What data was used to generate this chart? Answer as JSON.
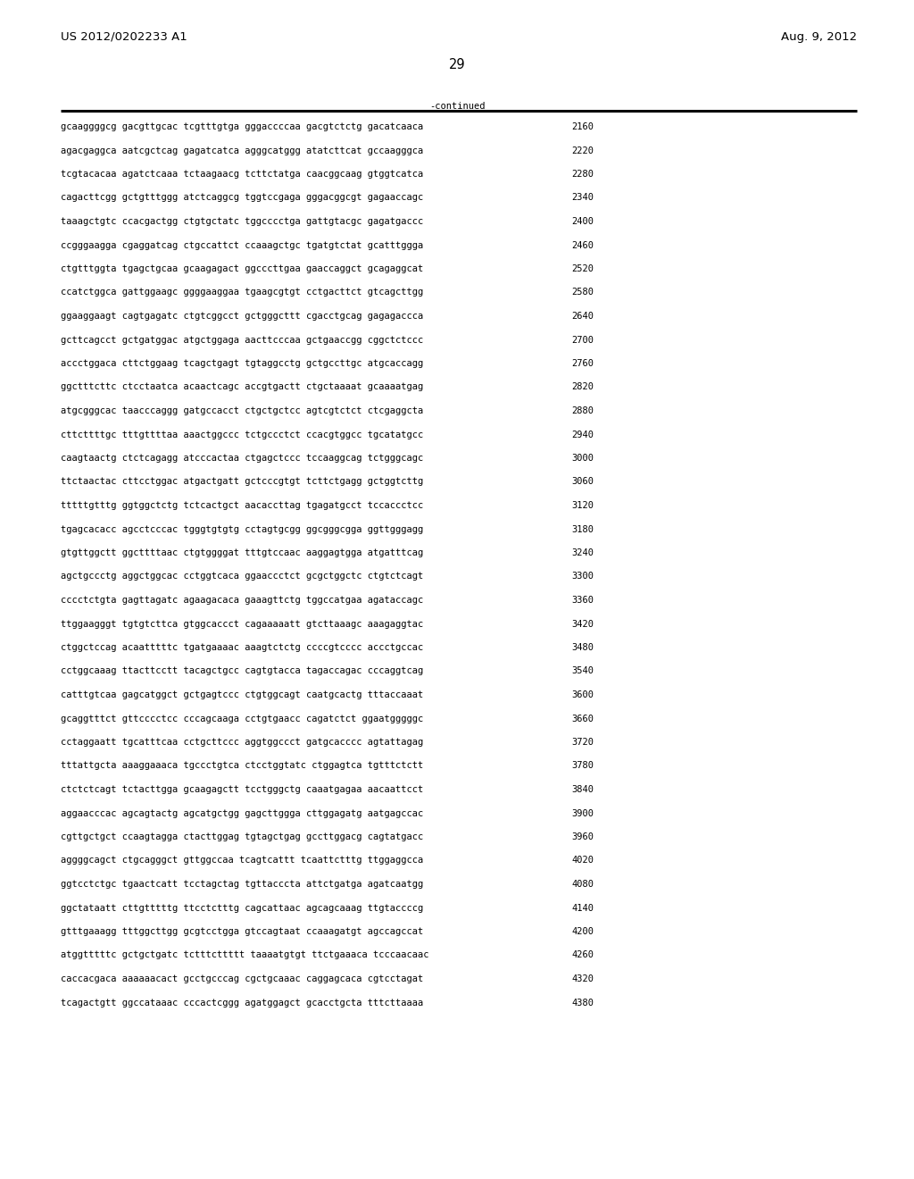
{
  "patent_number": "US 2012/0202233 A1",
  "date": "Aug. 9, 2012",
  "page_number": "29",
  "continued_label": "-continued",
  "background_color": "#ffffff",
  "text_color": "#000000",
  "font_size_header": 9.5,
  "font_size_sequence": 7.5,
  "font_size_page": 10.5,
  "sequence_lines": [
    [
      "gcaaggggcg gacgttgcac tcgtttgtga gggaccccaa gacgtctctg gacatcaaca",
      "2160"
    ],
    [
      "agacgaggca aatcgctcag gagatcatca agggcatggg atatcttcat gccaagggca",
      "2220"
    ],
    [
      "tcgtacacaa agatctcaaa tctaagaacg tcttctatga caacggcaag gtggtcatca",
      "2280"
    ],
    [
      "cagacttcgg gctgtttggg atctcaggcg tggtccgaga gggacggcgt gagaaccagc",
      "2340"
    ],
    [
      "taaagctgtc ccacgactgg ctgtgctatc tggcccctga gattgtacgc gagatgaccc",
      "2400"
    ],
    [
      "ccgggaagga cgaggatcag ctgccattct ccaaagctgc tgatgtctat gcatttggga",
      "2460"
    ],
    [
      "ctgtttggta tgagctgcaa gcaagagact ggcccttgaa gaaccaggct gcagaggcat",
      "2520"
    ],
    [
      "ccatctggca gattggaagc ggggaaggaa tgaagcgtgt cctgacttct gtcagcttgg",
      "2580"
    ],
    [
      "ggaaggaagt cagtgagatc ctgtcggcct gctgggcttt cgacctgcag gagagaccca",
      "2640"
    ],
    [
      "gcttcagcct gctgatggac atgctggaga aacttcccaa gctgaaccgg cggctctccc",
      "2700"
    ],
    [
      "accctggaca cttctggaag tcagctgagt tgtaggcctg gctgccttgc atgcaccagg",
      "2760"
    ],
    [
      "ggctttcttc ctcctaatca acaactcagc accgtgactt ctgctaaaat gcaaaatgag",
      "2820"
    ],
    [
      "atgcgggcac taacccaggg gatgccacct ctgctgctcc agtcgtctct ctcgaggcta",
      "2880"
    ],
    [
      "cttcttttgc tttgttttaa aaactggccc tctgccctct ccacgtggcc tgcatatgcc",
      "2940"
    ],
    [
      "caagtaactg ctctcagagg atcccactaa ctgagctccc tccaaggcag tctgggcagc",
      "3000"
    ],
    [
      "ttctaactac cttcctggac atgactgatt gctcccgtgt tcttctgagg gctggtcttg",
      "3060"
    ],
    [
      "tttttgtttg ggtggctctg tctcactgct aacaccttag tgagatgcct tccaccctcc",
      "3120"
    ],
    [
      "tgagcacacc agcctcccac tgggtgtgtg cctagtgcgg ggcgggcgga ggttgggagg",
      "3180"
    ],
    [
      "gtgttggctt ggcttttaac ctgtggggat tttgtccaac aaggagtgga atgatttcag",
      "3240"
    ],
    [
      "agctgccctg aggctggcac cctggtcaca ggaaccctct gcgctggctc ctgtctcagt",
      "3300"
    ],
    [
      "cccctctgta gagttagatc agaagacaca gaaagttctg tggccatgaa agataccagc",
      "3360"
    ],
    [
      "ttggaagggt tgtgtcttca gtggcaccct cagaaaaatt gtcttaaagc aaagaggtac",
      "3420"
    ],
    [
      "ctggctccag acaatttttc tgatgaaaac aaagtctctg ccccgtcccc accctgccac",
      "3480"
    ],
    [
      "cctggcaaag ttacttcctt tacagctgcc cagtgtacca tagaccagac cccaggtcag",
      "3540"
    ],
    [
      "catttgtcaa gagcatggct gctgagtccc ctgtggcagt caatgcactg tttaccaaat",
      "3600"
    ],
    [
      "gcaggtttct gttcccctcc cccagcaaga cctgtgaacc cagatctct ggaatgggggc",
      "3660"
    ],
    [
      "cctaggaatt tgcatttcaa cctgcttccc aggtggccct gatgcacccc agtattagag",
      "3720"
    ],
    [
      "tttattgcta aaaggaaaca tgccctgtca ctcctggtatc ctggagtca tgtttctctt",
      "3780"
    ],
    [
      "ctctctcagt tctacttgga gcaagagctt tcctgggctg caaatgagaa aacaattcct",
      "3840"
    ],
    [
      "aggaacccac agcagtactg agcatgctgg gagcttggga cttggagatg aatgagccac",
      "3900"
    ],
    [
      "cgttgctgct ccaagtagga ctacttggag tgtagctgag gccttggacg cagtatgacc",
      "3960"
    ],
    [
      "aggggcagct ctgcagggct gttggccaa tcagtcattt tcaattctttg ttggaggcca",
      "4020"
    ],
    [
      "ggtcctctgc tgaactcatt tcctagctag tgttacccta attctgatga agatcaatgg",
      "4080"
    ],
    [
      "ggctataatt cttgtttttg ttcctctttg cagcattaac agcagcaaag ttgtaccccg",
      "4140"
    ],
    [
      "gtttgaaagg tttggcttgg gcgtcctgga gtccagtaat ccaaagatgt agccagccat",
      "4200"
    ],
    [
      "atggtttttc gctgctgatc tctttcttttt taaaatgtgt ttctgaaaca tcccaacaac",
      "4260"
    ],
    [
      "caccacgaca aaaaaacact gcctgcccag cgctgcaaac caggagcaca cgtcctagat",
      "4320"
    ],
    [
      "tcagactgtt ggccataaac cccactcggg agatggagct gcacctgcta tttcttaaaa",
      "4380"
    ]
  ]
}
